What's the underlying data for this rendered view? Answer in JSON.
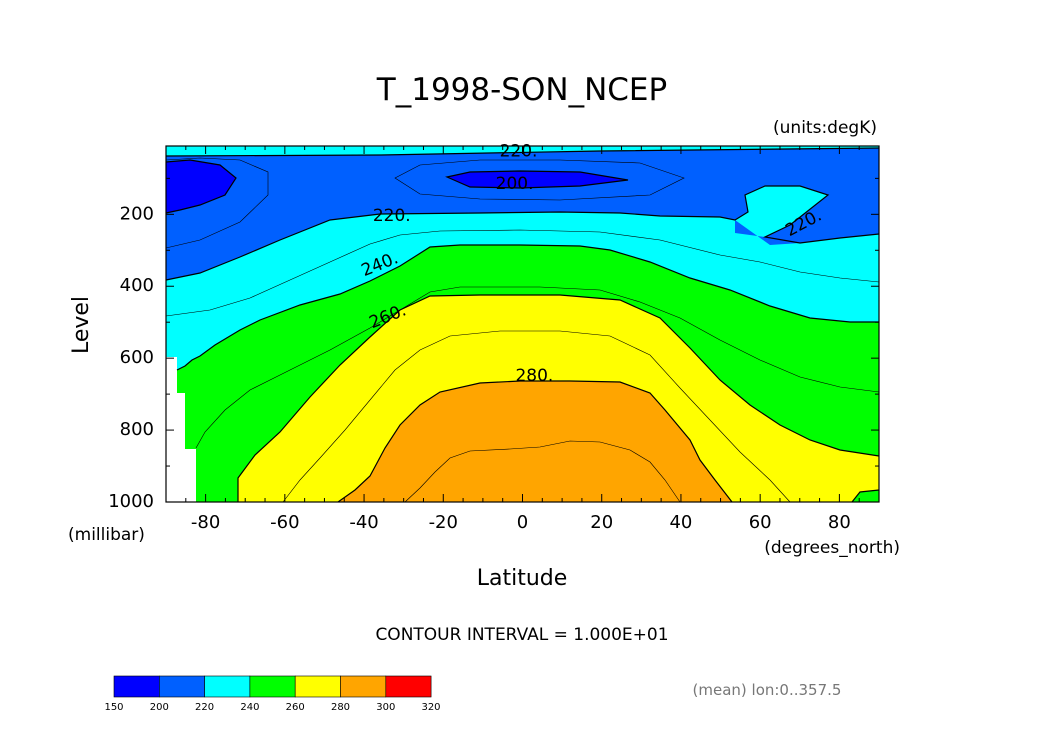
{
  "chart_data": {
    "type": "contour",
    "title": "T_1998-SON_NCEP",
    "units_label": "(units:degK)",
    "xlabel": "Latitude",
    "x_units": "(degrees_north)",
    "ylabel": "Level",
    "y_units": "(millibar)",
    "xlim": [
      -90,
      90
    ],
    "ylim": [
      1000,
      10
    ],
    "x_ticks": [
      "-80",
      "-60",
      "-40",
      "-20",
      "0",
      "20",
      "40",
      "60",
      "80"
    ],
    "x_tick_values": [
      -80,
      -60,
      -40,
      -20,
      0,
      20,
      40,
      60,
      80
    ],
    "y_ticks": [
      "200",
      "400",
      "600",
      "800",
      "1000"
    ],
    "y_tick_values": [
      200,
      400,
      600,
      800,
      1000
    ],
    "contour_interval_text": "CONTOUR INTERVAL = 1.000E+01",
    "footnote": "(mean) lon:0..357.5",
    "contour_labels": [
      {
        "text": "220.",
        "lat": -1,
        "level": 25
      },
      {
        "text": "200.",
        "lat": -2,
        "level": 115
      },
      {
        "text": "220.",
        "lat": -33,
        "level": 205
      },
      {
        "text": "220.",
        "lat": 71,
        "level": 225
      },
      {
        "text": "240.",
        "lat": -36,
        "level": 340
      },
      {
        "text": "260.",
        "lat": -34,
        "level": 485
      },
      {
        "text": "280.",
        "lat": 3,
        "level": 650
      }
    ],
    "colorbar": {
      "labels": [
        "150",
        "200",
        "220",
        "240",
        "260",
        "280",
        "300",
        "320"
      ],
      "colors": [
        "#0000ff",
        "#0060ff",
        "#00ffff",
        "#00ff00",
        "#ffff00",
        "#ffa500",
        "#ff0000"
      ]
    },
    "fill_colors": {
      "below_200": "#0000ff",
      "200_220": "#0060ff",
      "220_240": "#00ffff",
      "240_260": "#00ff00",
      "260_280": "#ffff00",
      "280_300": "#ffa500",
      "missing": "#ffffff"
    }
  }
}
